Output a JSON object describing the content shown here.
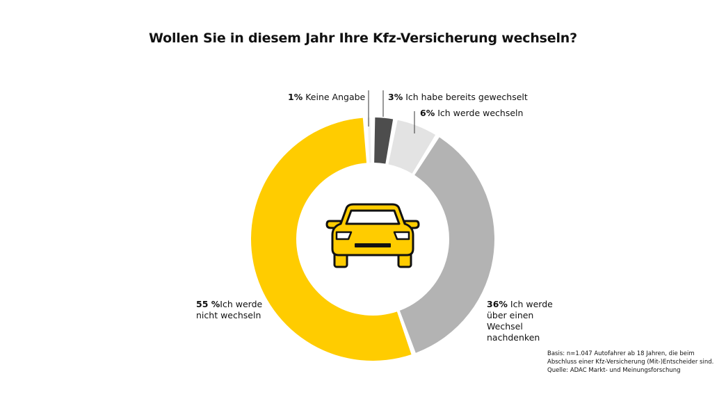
{
  "title": "Wollen Sie in diesem Jahr Ihre Kfz-Versicherung wechseln?",
  "chart_data": {
    "type": "pie",
    "title": "Wollen Sie in diesem Jahr Ihre Kfz-Versicherung wechseln?",
    "donut": true,
    "center_icon": "car-icon",
    "slices": [
      {
        "pct_label": "3%",
        "label": "Ich habe bereits gewechselt",
        "value": 3,
        "color": "#4d4d4d"
      },
      {
        "pct_label": "6%",
        "label": "Ich werde wechseln",
        "value": 6,
        "color": "#e3e3e3"
      },
      {
        "pct_label": "36%",
        "label": "Ich werde über einen Wechsel nachdenken",
        "value": 36,
        "color": "#b3b3b3"
      },
      {
        "pct_label": "55 %",
        "label": "Ich werde nicht wechseln",
        "value": 55,
        "color": "#ffcc00"
      },
      {
        "pct_label": "1%",
        "label": "Keine Angabe",
        "value": 1,
        "color": "#f2f2f2"
      }
    ]
  },
  "note": {
    "line1": "Basis: n=1.047 Autofahrer ab 18 Jahren, die beim",
    "line2": "Abschluss einer Kfz-Versicherung (Mit-)Entscheider sind.",
    "line3": "Quelle: ADAC Markt- und Meinungsforschung"
  },
  "colors": {
    "accent": "#ffcc00",
    "text": "#111111",
    "car_outline": "#111111"
  }
}
